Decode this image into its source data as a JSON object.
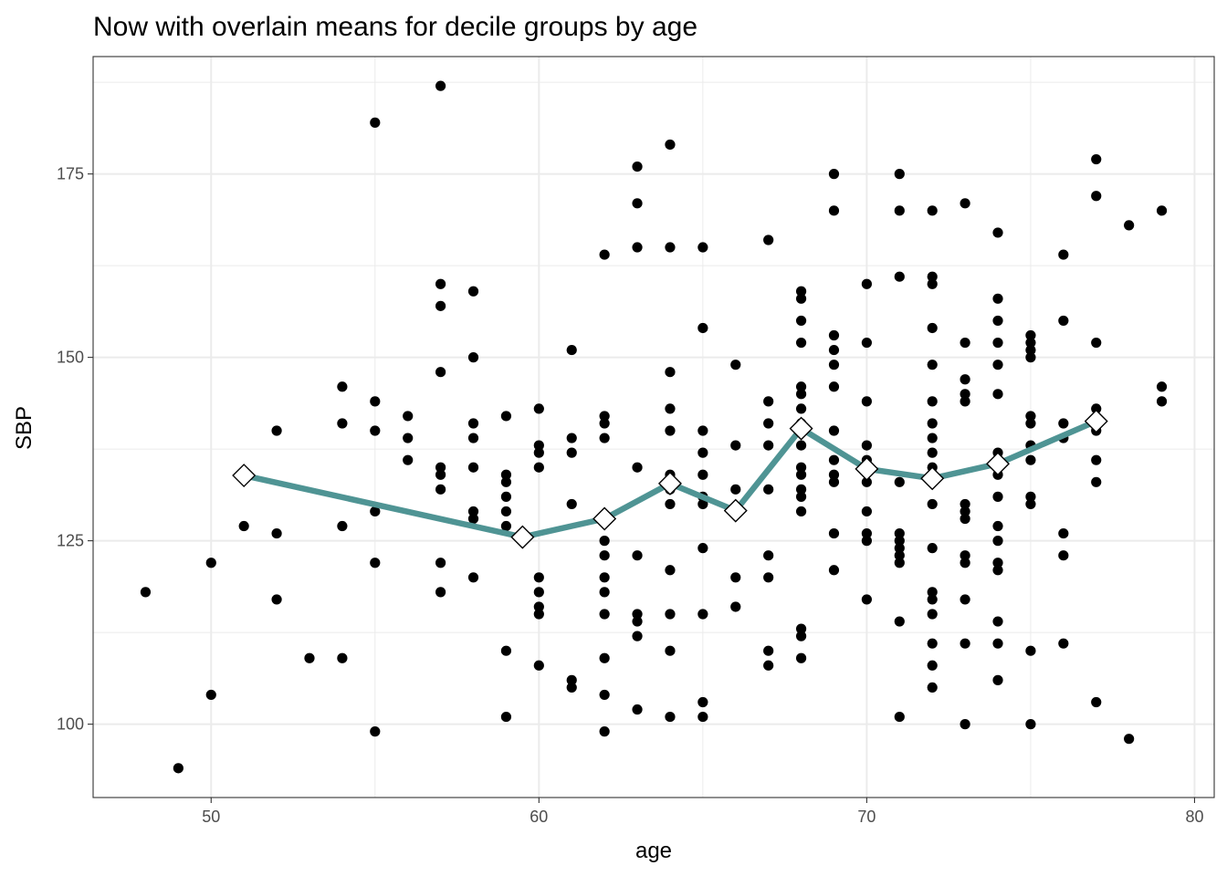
{
  "chart_data": {
    "type": "scatter",
    "title": "Now with overlain means for decile groups by age",
    "xlabel": "age",
    "ylabel": "SBP",
    "xlim": [
      46.4,
      80.6
    ],
    "ylim": [
      90.0,
      191.0
    ],
    "xticks": [
      50,
      60,
      70,
      80
    ],
    "yticks": [
      100,
      125,
      150,
      175
    ],
    "grid": true,
    "legend": "none",
    "colors": {
      "points": "#000000",
      "mean_line": "#4F9494",
      "mean_marker_fill": "#ffffff",
      "mean_marker_stroke": "#000000"
    },
    "series": [
      {
        "kind": "points",
        "values": [
          [
            48,
            118
          ],
          [
            49,
            94
          ],
          [
            50,
            122
          ],
          [
            50,
            104
          ],
          [
            51,
            127
          ],
          [
            52,
            140
          ],
          [
            52,
            126
          ],
          [
            52,
            117
          ],
          [
            53,
            109
          ],
          [
            54,
            146
          ],
          [
            54,
            141
          ],
          [
            54,
            127
          ],
          [
            54,
            109
          ],
          [
            55,
            182
          ],
          [
            55,
            144
          ],
          [
            55,
            140
          ],
          [
            55,
            129
          ],
          [
            55,
            122
          ],
          [
            55,
            99
          ],
          [
            56,
            142
          ],
          [
            56,
            139
          ],
          [
            56,
            136
          ],
          [
            57,
            187
          ],
          [
            57,
            160
          ],
          [
            57,
            157
          ],
          [
            57,
            148
          ],
          [
            57,
            135
          ],
          [
            57,
            134
          ],
          [
            57,
            132
          ],
          [
            57,
            122
          ],
          [
            57,
            118
          ],
          [
            58,
            159
          ],
          [
            58,
            150
          ],
          [
            58,
            141
          ],
          [
            58,
            139
          ],
          [
            58,
            135
          ],
          [
            58,
            129
          ],
          [
            58,
            128
          ],
          [
            58,
            120
          ],
          [
            59,
            142
          ],
          [
            59,
            134
          ],
          [
            59,
            133
          ],
          [
            59,
            131
          ],
          [
            59,
            129
          ],
          [
            59,
            127
          ],
          [
            59,
            110
          ],
          [
            59,
            101
          ],
          [
            60,
            143
          ],
          [
            60,
            138
          ],
          [
            60,
            137
          ],
          [
            60,
            135
          ],
          [
            60,
            120
          ],
          [
            60,
            118
          ],
          [
            60,
            116
          ],
          [
            60,
            115
          ],
          [
            60,
            108
          ],
          [
            61,
            151
          ],
          [
            61,
            139
          ],
          [
            61,
            137
          ],
          [
            61,
            130
          ],
          [
            61,
            106
          ],
          [
            61,
            105
          ],
          [
            62,
            164
          ],
          [
            62,
            142
          ],
          [
            62,
            141
          ],
          [
            62,
            139
          ],
          [
            62,
            128
          ],
          [
            62,
            125
          ],
          [
            62,
            123
          ],
          [
            62,
            120
          ],
          [
            62,
            118
          ],
          [
            62,
            115
          ],
          [
            62,
            109
          ],
          [
            62,
            104
          ],
          [
            62,
            99
          ],
          [
            63,
            176
          ],
          [
            63,
            171
          ],
          [
            63,
            165
          ],
          [
            63,
            135
          ],
          [
            63,
            123
          ],
          [
            63,
            115
          ],
          [
            63,
            114
          ],
          [
            63,
            112
          ],
          [
            63,
            102
          ],
          [
            64,
            179
          ],
          [
            64,
            165
          ],
          [
            64,
            148
          ],
          [
            64,
            143
          ],
          [
            64,
            140
          ],
          [
            64,
            134
          ],
          [
            64,
            132
          ],
          [
            64,
            130
          ],
          [
            64,
            121
          ],
          [
            64,
            115
          ],
          [
            64,
            110
          ],
          [
            64,
            101
          ],
          [
            65,
            165
          ],
          [
            65,
            154
          ],
          [
            65,
            140
          ],
          [
            65,
            137
          ],
          [
            65,
            134
          ],
          [
            65,
            131
          ],
          [
            65,
            130
          ],
          [
            65,
            124
          ],
          [
            65,
            115
          ],
          [
            65,
            103
          ],
          [
            65,
            101
          ],
          [
            66,
            149
          ],
          [
            66,
            138
          ],
          [
            66,
            132
          ],
          [
            66,
            120
          ],
          [
            66,
            116
          ],
          [
            67,
            166
          ],
          [
            67,
            144
          ],
          [
            67,
            141
          ],
          [
            67,
            138
          ],
          [
            67,
            132
          ],
          [
            67,
            123
          ],
          [
            67,
            120
          ],
          [
            67,
            110
          ],
          [
            67,
            108
          ],
          [
            68,
            159
          ],
          [
            68,
            158
          ],
          [
            68,
            155
          ],
          [
            68,
            152
          ],
          [
            68,
            146
          ],
          [
            68,
            145
          ],
          [
            68,
            143
          ],
          [
            68,
            141
          ],
          [
            68,
            140
          ],
          [
            68,
            138
          ],
          [
            68,
            135
          ],
          [
            68,
            134
          ],
          [
            68,
            132
          ],
          [
            68,
            131
          ],
          [
            68,
            129
          ],
          [
            68,
            113
          ],
          [
            68,
            112
          ],
          [
            68,
            109
          ],
          [
            69,
            175
          ],
          [
            69,
            170
          ],
          [
            69,
            153
          ],
          [
            69,
            151
          ],
          [
            69,
            149
          ],
          [
            69,
            146
          ],
          [
            69,
            140
          ],
          [
            69,
            136
          ],
          [
            69,
            134
          ],
          [
            69,
            133
          ],
          [
            69,
            126
          ],
          [
            69,
            121
          ],
          [
            70,
            160
          ],
          [
            70,
            152
          ],
          [
            70,
            144
          ],
          [
            70,
            138
          ],
          [
            70,
            136
          ],
          [
            70,
            133
          ],
          [
            70,
            129
          ],
          [
            70,
            126
          ],
          [
            70,
            125
          ],
          [
            70,
            117
          ],
          [
            71,
            175
          ],
          [
            71,
            170
          ],
          [
            71,
            161
          ],
          [
            71,
            133
          ],
          [
            71,
            126
          ],
          [
            71,
            125
          ],
          [
            71,
            124
          ],
          [
            71,
            123
          ],
          [
            71,
            122
          ],
          [
            71,
            114
          ],
          [
            71,
            101
          ],
          [
            72,
            170
          ],
          [
            72,
            161
          ],
          [
            72,
            160
          ],
          [
            72,
            154
          ],
          [
            72,
            149
          ],
          [
            72,
            144
          ],
          [
            72,
            141
          ],
          [
            72,
            139
          ],
          [
            72,
            137
          ],
          [
            72,
            135
          ],
          [
            72,
            130
          ],
          [
            72,
            124
          ],
          [
            72,
            118
          ],
          [
            72,
            117
          ],
          [
            72,
            115
          ],
          [
            72,
            111
          ],
          [
            72,
            108
          ],
          [
            72,
            105
          ],
          [
            73,
            171
          ],
          [
            73,
            152
          ],
          [
            73,
            147
          ],
          [
            73,
            145
          ],
          [
            73,
            144
          ],
          [
            73,
            130
          ],
          [
            73,
            129
          ],
          [
            73,
            128
          ],
          [
            73,
            123
          ],
          [
            73,
            122
          ],
          [
            73,
            117
          ],
          [
            73,
            111
          ],
          [
            73,
            100
          ],
          [
            74,
            167
          ],
          [
            74,
            158
          ],
          [
            74,
            155
          ],
          [
            74,
            152
          ],
          [
            74,
            149
          ],
          [
            74,
            145
          ],
          [
            74,
            137
          ],
          [
            74,
            134
          ],
          [
            74,
            131
          ],
          [
            74,
            127
          ],
          [
            74,
            125
          ],
          [
            74,
            122
          ],
          [
            74,
            121
          ],
          [
            74,
            114
          ],
          [
            74,
            111
          ],
          [
            74,
            106
          ],
          [
            75,
            153
          ],
          [
            75,
            152
          ],
          [
            75,
            151
          ],
          [
            75,
            150
          ],
          [
            75,
            142
          ],
          [
            75,
            141
          ],
          [
            75,
            138
          ],
          [
            75,
            136
          ],
          [
            75,
            131
          ],
          [
            75,
            130
          ],
          [
            75,
            110
          ],
          [
            75,
            100
          ],
          [
            76,
            164
          ],
          [
            76,
            155
          ],
          [
            76,
            141
          ],
          [
            76,
            139
          ],
          [
            76,
            126
          ],
          [
            76,
            123
          ],
          [
            76,
            111
          ],
          [
            77,
            177
          ],
          [
            77,
            172
          ],
          [
            77,
            152
          ],
          [
            77,
            143
          ],
          [
            77,
            140
          ],
          [
            77,
            136
          ],
          [
            77,
            133
          ],
          [
            77,
            103
          ],
          [
            78,
            168
          ],
          [
            78,
            98
          ],
          [
            79,
            170
          ],
          [
            79,
            146
          ],
          [
            79,
            144
          ]
        ]
      },
      {
        "kind": "means",
        "values": [
          [
            51.0,
            133.9
          ],
          [
            59.5,
            125.5
          ],
          [
            62.0,
            128.0
          ],
          [
            64.0,
            132.8
          ],
          [
            66.0,
            129.1
          ],
          [
            68.0,
            140.3
          ],
          [
            70.0,
            134.8
          ],
          [
            72.0,
            133.5
          ],
          [
            74.0,
            135.5
          ],
          [
            77.0,
            141.3
          ]
        ]
      }
    ]
  }
}
